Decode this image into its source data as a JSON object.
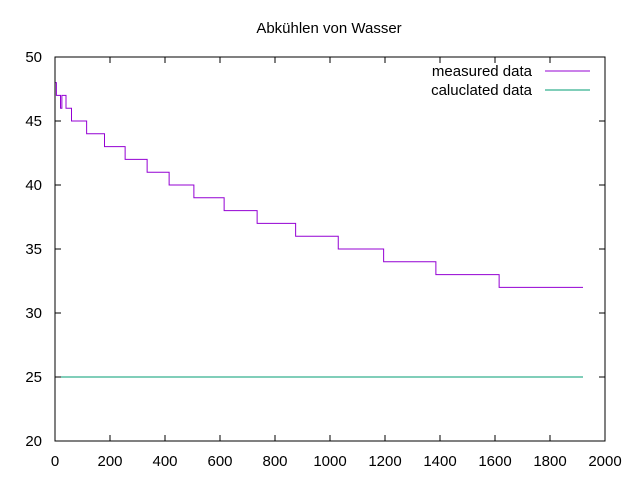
{
  "chart_data": {
    "type": "line",
    "title": "Abkühlen von Wasser",
    "xlabel": "",
    "ylabel": "",
    "xlim": [
      0,
      2000
    ],
    "ylim": [
      20,
      50
    ],
    "x_ticks": [
      0,
      200,
      400,
      600,
      800,
      1000,
      1200,
      1400,
      1600,
      1800,
      2000
    ],
    "y_ticks": [
      20,
      25,
      30,
      35,
      40,
      45,
      50
    ],
    "grid": false,
    "legend_position": "top-right",
    "series": [
      {
        "name": "measured data",
        "color": "#9400d3",
        "step": true,
        "points": [
          [
            0,
            48
          ],
          [
            5,
            47
          ],
          [
            20,
            46
          ],
          [
            25,
            47
          ],
          [
            40,
            46
          ],
          [
            60,
            45
          ],
          [
            115,
            44
          ],
          [
            180,
            43
          ],
          [
            255,
            42
          ],
          [
            335,
            41
          ],
          [
            415,
            40
          ],
          [
            505,
            39
          ],
          [
            615,
            38
          ],
          [
            735,
            37
          ],
          [
            875,
            36
          ],
          [
            1030,
            35
          ],
          [
            1195,
            34
          ],
          [
            1385,
            33
          ],
          [
            1615,
            32
          ],
          [
            1920,
            32
          ]
        ]
      },
      {
        "name": "caluclated data",
        "color": "#009e73",
        "step": false,
        "points": [
          [
            0,
            25
          ],
          [
            1920,
            25
          ]
        ]
      }
    ]
  }
}
